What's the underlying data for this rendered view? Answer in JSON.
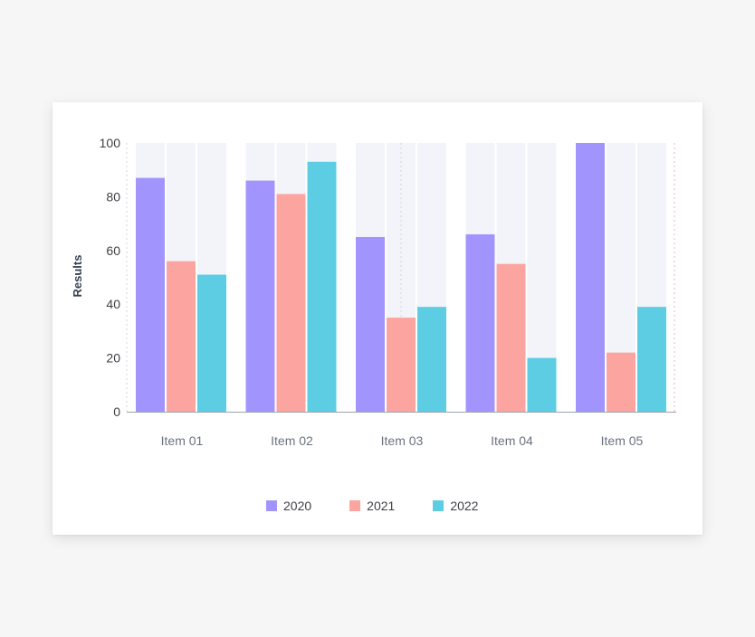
{
  "chart_data": {
    "type": "bar",
    "categories": [
      "Item 01",
      "Item 02",
      "Item 03",
      "Item 04",
      "Item 05"
    ],
    "series": [
      {
        "name": "2020",
        "color": "#a195fd",
        "values": [
          87,
          86,
          65,
          66,
          100
        ]
      },
      {
        "name": "2021",
        "color": "#fca5a0",
        "values": [
          56,
          81,
          35,
          55,
          22
        ]
      },
      {
        "name": "2022",
        "color": "#5dcde3",
        "values": [
          51,
          93,
          39,
          20,
          39
        ]
      }
    ],
    "title": "",
    "xlabel": "",
    "ylabel": "Results",
    "ylim": [
      0,
      100
    ],
    "yticks": [
      0,
      20,
      40,
      60,
      80,
      100
    ],
    "legend_position": "bottom-center",
    "background_bar_color": "#f3f4f9"
  }
}
